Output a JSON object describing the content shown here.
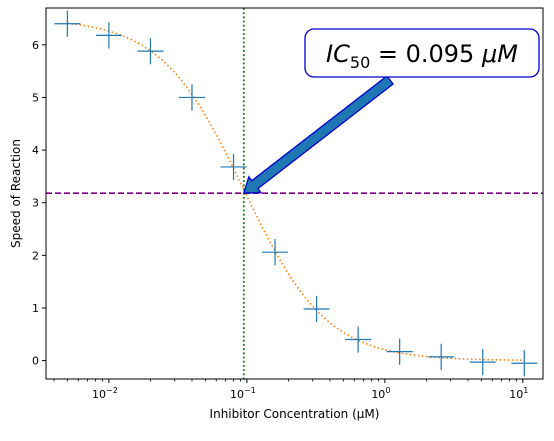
{
  "chart_data": {
    "type": "scatter",
    "xscale": "log",
    "xlabel": "Inhibitor Concentration (μM)",
    "ylabel": "Speed of Reaction",
    "xlim": [
      0.0035,
      14
    ],
    "ylim": [
      -0.35,
      6.7
    ],
    "grid": false,
    "series": [
      {
        "marker": "plus-with-errorbars",
        "color": "#1f77b4",
        "x": [
          0.005,
          0.01,
          0.02,
          0.04,
          0.08,
          0.16,
          0.32,
          0.64,
          1.28,
          2.56,
          5.12,
          10.24
        ],
        "y": [
          6.4,
          6.18,
          5.88,
          5.0,
          3.68,
          2.06,
          0.98,
          0.4,
          0.17,
          0.07,
          -0.03,
          -0.05
        ],
        "yerr": [
          0.25,
          0.25,
          0.25,
          0.25,
          0.25,
          0.25,
          0.25,
          0.25,
          0.25,
          0.25,
          0.25,
          0.25
        ]
      },
      {
        "style": "dotted-fit",
        "color": "#ff7f0e",
        "top": 6.5,
        "bottom": 0.0,
        "ic50": 0.095,
        "hill": 1.45
      }
    ],
    "hline": {
      "y": 3.18,
      "color": "#800080",
      "style": "dashed"
    },
    "vline": {
      "x": 0.095,
      "color": "#008000",
      "style": "dotted"
    },
    "xticks": [
      {
        "value": 0.01,
        "base": "10",
        "exp": "−2"
      },
      {
        "value": 0.1,
        "base": "10",
        "exp": "−1"
      },
      {
        "value": 1,
        "base": "10",
        "exp": "0"
      },
      {
        "value": 10,
        "base": "10",
        "exp": "1"
      }
    ],
    "yticks": [
      0,
      1,
      2,
      3,
      4,
      5,
      6
    ],
    "annotation": {
      "prefix": "IC",
      "subscript": "50",
      "equals": " = 0.095 ",
      "unit": "μM",
      "point": [
        0.095,
        3.18
      ],
      "box_color": "#0000cd",
      "arrow_color": "#1f77b4"
    }
  }
}
